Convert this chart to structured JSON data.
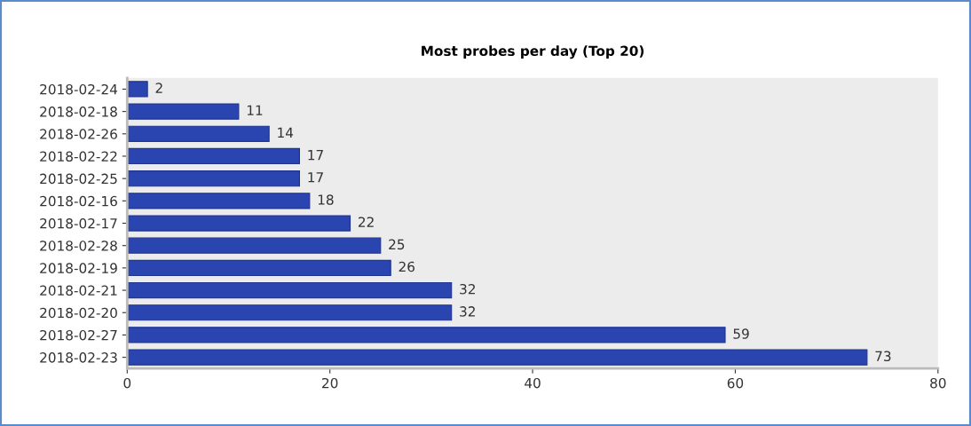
{
  "chart_data": {
    "type": "bar",
    "orientation": "horizontal",
    "title": "Most probes per day (Top 20)",
    "categories": [
      "2018-02-24",
      "2018-02-18",
      "2018-02-26",
      "2018-02-22",
      "2018-02-25",
      "2018-02-16",
      "2018-02-17",
      "2018-02-28",
      "2018-02-19",
      "2018-02-21",
      "2018-02-20",
      "2018-02-27",
      "2018-02-23"
    ],
    "values": [
      2,
      11,
      14,
      17,
      17,
      18,
      22,
      25,
      26,
      32,
      32,
      59,
      73
    ],
    "color": "#2a44b0",
    "xlim": [
      0,
      80
    ],
    "xticks": [
      0,
      20,
      40,
      60,
      80
    ],
    "data_labels": true,
    "grid": false,
    "legend": false
  }
}
